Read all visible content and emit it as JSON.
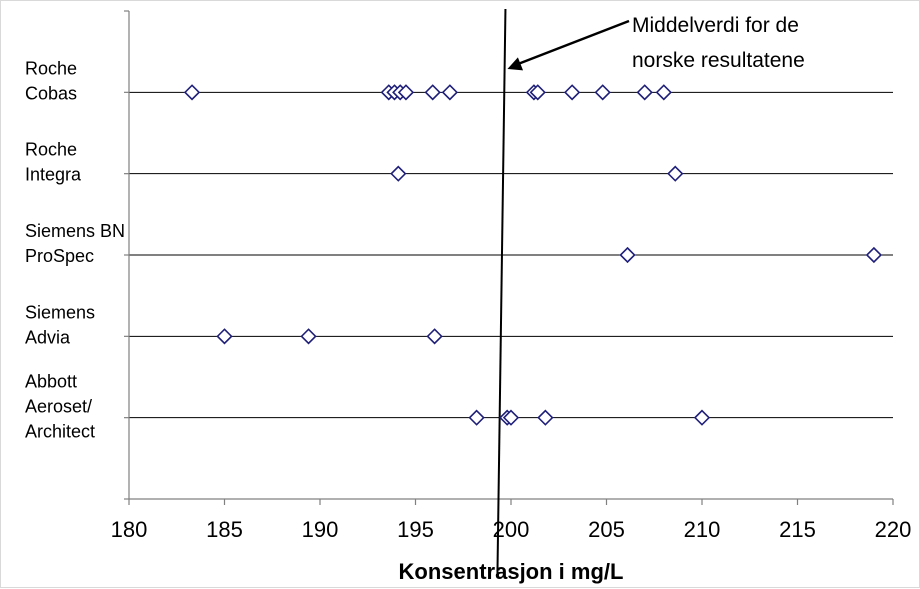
{
  "chart_data": {
    "type": "scatter",
    "title": "",
    "xlabel": "Konsentrasjon i mg/L",
    "ylabel": "",
    "xlim": [
      180,
      220
    ],
    "xticks": [
      180,
      185,
      190,
      195,
      200,
      205,
      210,
      215,
      220
    ],
    "grid": true,
    "legend": "none",
    "marker": "diamond-open",
    "marker_color": "#1f1f7a",
    "categories": [
      {
        "label": [
          "Roche",
          "Cobas"
        ],
        "values": [
          183.3,
          193.6,
          193.9,
          194.2,
          194.5,
          195.9,
          196.8,
          201.2,
          201.4,
          203.2,
          204.8,
          207.0,
          208.0
        ]
      },
      {
        "label": [
          "Roche",
          "Integra"
        ],
        "values": [
          194.1,
          208.6
        ]
      },
      {
        "label": [
          "Siemens BN",
          "ProSpec"
        ],
        "values": [
          206.1,
          219.0
        ]
      },
      {
        "label": [
          "Siemens",
          "Advia"
        ],
        "values": [
          185.0,
          189.4,
          196.0
        ]
      },
      {
        "label": [
          "Abbott",
          "Aeroset/",
          "Architect"
        ],
        "values": [
          198.2,
          199.8,
          200.0,
          201.8,
          210.0
        ]
      }
    ],
    "reference_line": {
      "value": 199.5
    },
    "annotation": {
      "lines": [
        "Middelverdi for de",
        "norske resultatene"
      ]
    }
  }
}
